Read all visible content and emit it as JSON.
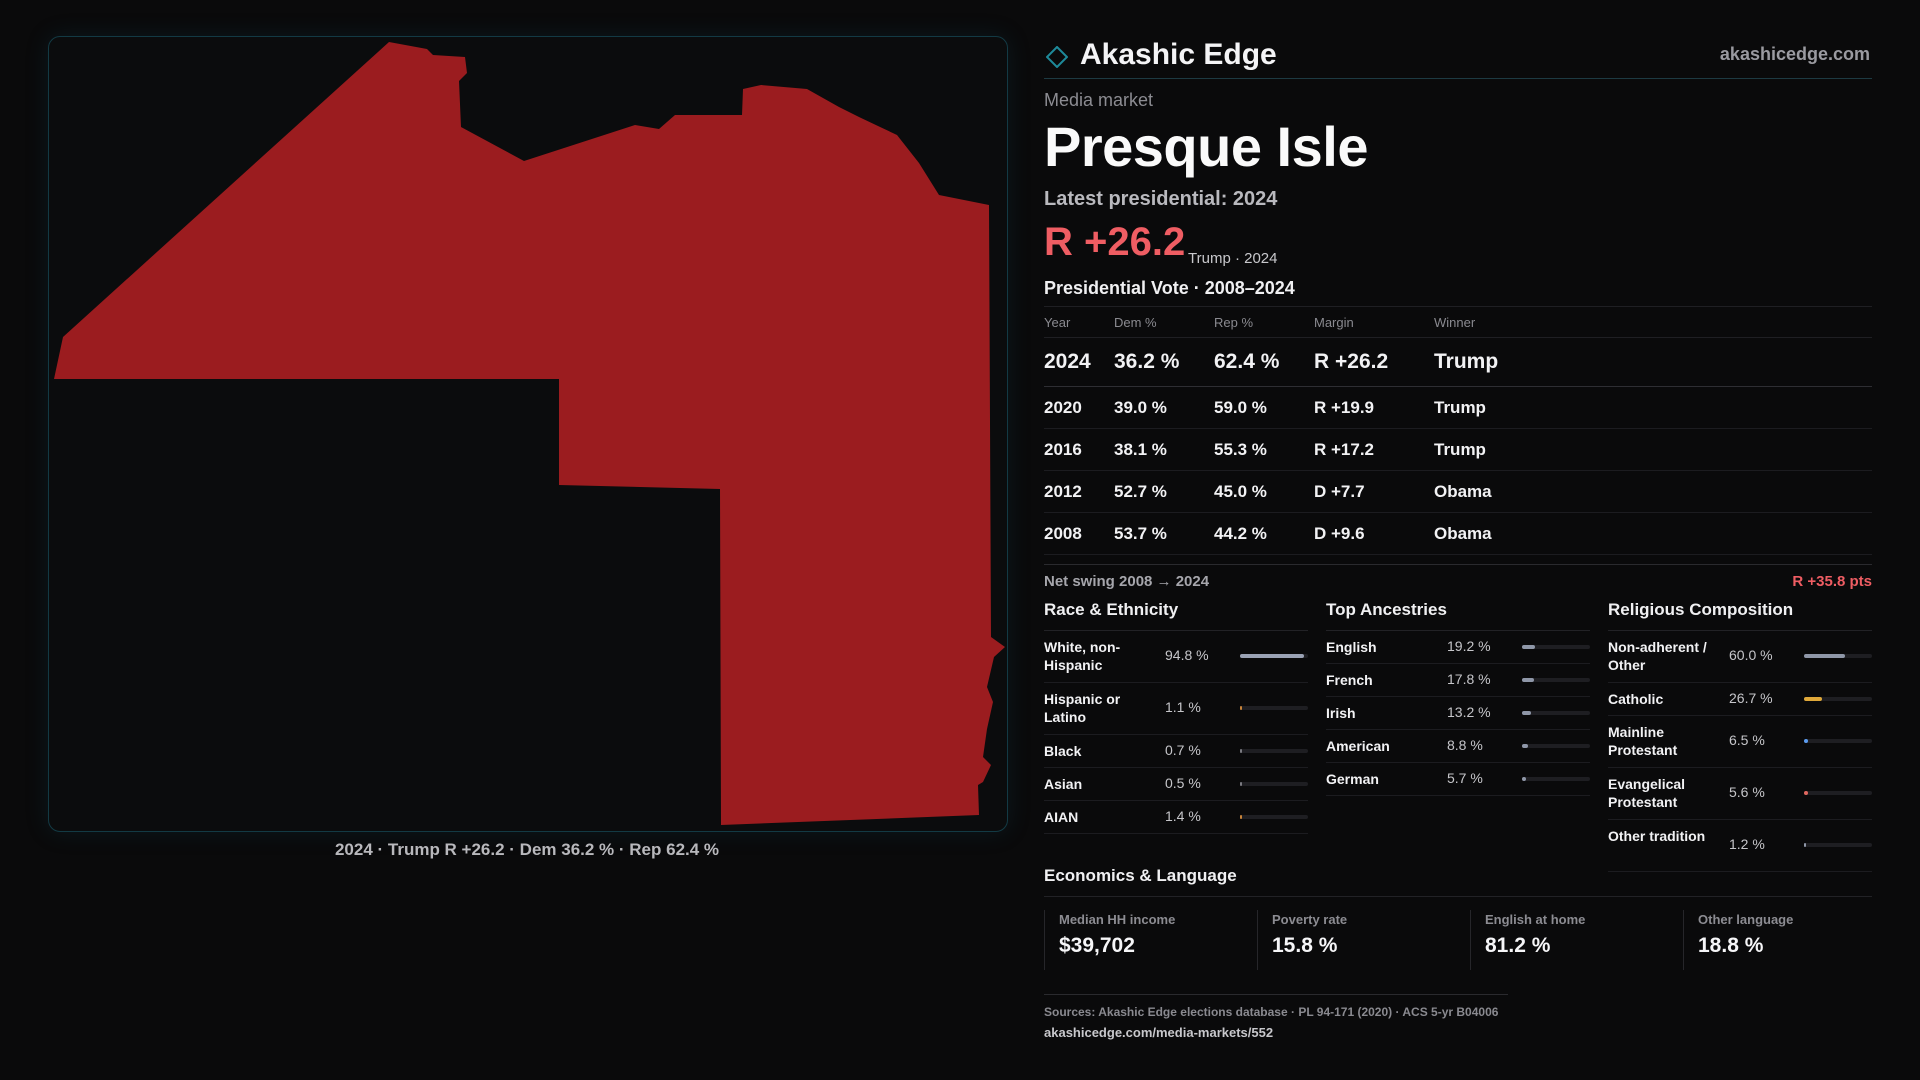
{
  "brand": {
    "name": "Akashic Edge",
    "url": "akashicedge.com"
  },
  "header": {
    "kicker": "Media market",
    "title": "Presque Isle",
    "latest_label": "Latest presidential: 2024",
    "big_margin": "R +26.2",
    "big_sub": "Trump · 2024"
  },
  "map": {
    "fill_color": "#9b1c1f",
    "caption": "2024 · Trump R +26.2 · Dem 36.2 % · Rep 62.4 %"
  },
  "votes": {
    "title": "Presidential Vote · 2008–2024",
    "columns": [
      "Year",
      "Dem %",
      "Rep %",
      "Margin",
      "Winner"
    ],
    "rows": [
      {
        "year": "2024",
        "dem": "36.2 %",
        "rep": "62.4 %",
        "margin": "R +26.2",
        "party": "rep",
        "winner": "Trump"
      },
      {
        "year": "2020",
        "dem": "39.0 %",
        "rep": "59.0 %",
        "margin": "R +19.9",
        "party": "rep",
        "winner": "Trump"
      },
      {
        "year": "2016",
        "dem": "38.1 %",
        "rep": "55.3 %",
        "margin": "R +17.2",
        "party": "rep",
        "winner": "Trump"
      },
      {
        "year": "2012",
        "dem": "52.7 %",
        "rep": "45.0 %",
        "margin": "D +7.7",
        "party": "dem",
        "winner": "Obama"
      },
      {
        "year": "2008",
        "dem": "53.7 %",
        "rep": "44.2 %",
        "margin": "D +9.6",
        "party": "dem",
        "winner": "Obama"
      }
    ]
  },
  "swing": {
    "label": "Net swing 2008 → 2024",
    "value": "R +35.8 pts"
  },
  "demographics": [
    {
      "title": "Race & Ethnicity",
      "items": [
        {
          "label": "White, non-Hispanic",
          "pct": "94.8 %",
          "fraction": 0.948,
          "color": "#9aa2b4"
        },
        {
          "label": "Hispanic or Latino",
          "pct": "1.1 %",
          "fraction": 0.011,
          "color": "#c8843a"
        },
        {
          "label": "Black",
          "pct": "0.7 %",
          "fraction": 0.007,
          "color": "#7a7a80"
        },
        {
          "label": "Asian",
          "pct": "0.5 %",
          "fraction": 0.005,
          "color": "#7a7a80"
        },
        {
          "label": "AIAN",
          "pct": "1.4 %",
          "fraction": 0.014,
          "color": "#c8843a"
        }
      ]
    },
    {
      "title": "Top Ancestries",
      "items": [
        {
          "label": "English",
          "pct": "19.2 %",
          "fraction": 0.192,
          "color": "#8f97a8"
        },
        {
          "label": "French",
          "pct": "17.8 %",
          "fraction": 0.178,
          "color": "#8f97a8"
        },
        {
          "label": "Irish",
          "pct": "13.2 %",
          "fraction": 0.132,
          "color": "#8f97a8"
        },
        {
          "label": "American",
          "pct": "8.8 %",
          "fraction": 0.088,
          "color": "#8f97a8"
        },
        {
          "label": "German",
          "pct": "5.7 %",
          "fraction": 0.057,
          "color": "#8f97a8"
        }
      ]
    },
    {
      "title": "Religious Composition",
      "items": [
        {
          "label": "Non-adherent / Other",
          "pct": "60.0 %",
          "fraction": 0.6,
          "color": "#8f97a8"
        },
        {
          "label": "Catholic",
          "pct": "26.7 %",
          "fraction": 0.267,
          "color": "#e0a93a"
        },
        {
          "label": "Mainline Protestant",
          "pct": "6.5 %",
          "fraction": 0.065,
          "color": "#5b9cf0"
        },
        {
          "label": "Evangelical Protestant",
          "pct": "5.6 %",
          "fraction": 0.056,
          "color": "#e0675f"
        },
        {
          "label": "Other tradition",
          "pct": "1.2 %",
          "fraction": 0.012,
          "color": "#8f97a8"
        }
      ]
    }
  ],
  "economics": {
    "title": "Economics & Language",
    "items": [
      {
        "label": "Median HH income",
        "value": "$39,702"
      },
      {
        "label": "Poverty rate",
        "value": "15.8 %"
      },
      {
        "label": "English at home",
        "value": "81.2 %"
      },
      {
        "label": "Other language",
        "value": "18.8 %"
      }
    ]
  },
  "footer": {
    "sources": "Sources: Akashic Edge elections database · PL 94-171 (2020) · ACS 5-yr B04006",
    "link": "akashicedge.com/media-markets/552"
  }
}
